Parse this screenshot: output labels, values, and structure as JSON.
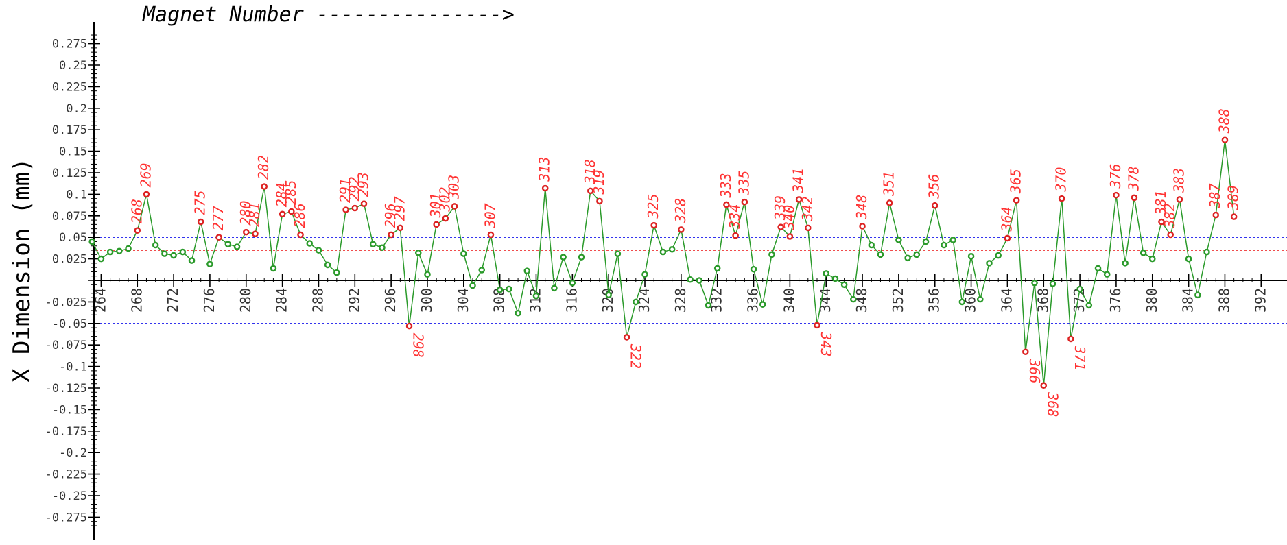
{
  "chart_data": {
    "type": "line",
    "title": "Magnet Number --------------->",
    "xlabel": "",
    "ylabel": "X Dimension (mm)",
    "xlim": [
      262.7,
      393.9
    ],
    "ylim": [
      -0.29,
      0.3
    ],
    "x_ticks": [
      264,
      268,
      272,
      276,
      280,
      284,
      288,
      292,
      296,
      300,
      304,
      308,
      312,
      316,
      320,
      324,
      328,
      332,
      336,
      340,
      344,
      348,
      352,
      356,
      360,
      364,
      368,
      372,
      376,
      380,
      384,
      388,
      392
    ],
    "y_ticks": [
      "0.275",
      "0.25",
      "0.225",
      "0.2",
      "0.175",
      "0.15",
      "0.125",
      "0.1",
      "0.075",
      "0.05",
      "0.025",
      "-0.025",
      "-0.05",
      "-0.075",
      "-0.1",
      "-0.125",
      "-0.15",
      "-0.175",
      "-0.2",
      "-0.225",
      "-0.25",
      "-0.275"
    ],
    "y_tick_values": [
      0.275,
      0.25,
      0.225,
      0.2,
      0.175,
      0.15,
      0.125,
      0.1,
      0.075,
      0.05,
      0.025,
      -0.025,
      -0.05,
      -0.075,
      -0.1,
      -0.125,
      -0.15,
      -0.175,
      -0.2,
      -0.225,
      -0.25,
      -0.275
    ],
    "reference_lines": [
      {
        "y": 0.05,
        "color": "#3333ee",
        "style": "dotted"
      },
      {
        "y": -0.05,
        "color": "#3333ee",
        "style": "dotted"
      },
      {
        "y": 0.035,
        "color": "#ee3333",
        "style": "dotted"
      }
    ],
    "grid": false,
    "colors": {
      "line": "#2a9a2a",
      "in_tolerance": "#2a9a2a",
      "out_of_tolerance": "#dd2222",
      "label": "#ff3333",
      "axis": "#000000"
    },
    "series": [
      {
        "x": [
          263,
          264,
          265,
          266,
          267,
          268,
          269,
          270,
          271,
          272,
          273,
          274,
          275,
          276,
          277,
          278,
          279,
          280,
          281,
          282,
          283,
          284,
          285,
          286,
          287,
          288,
          289,
          290,
          291,
          292,
          293,
          294,
          295,
          296,
          297,
          298,
          299,
          300,
          301,
          302,
          303,
          304,
          305,
          306,
          307,
          308,
          309,
          310,
          311,
          312,
          313,
          314,
          315,
          316,
          317,
          318,
          319,
          320,
          321,
          322,
          323,
          324,
          325,
          326,
          327,
          328,
          329,
          330,
          331,
          332,
          333,
          334,
          335,
          336,
          337,
          338,
          339,
          340,
          341,
          342,
          343,
          344,
          345,
          346,
          347,
          348,
          349,
          350,
          351,
          352,
          353,
          354,
          355,
          356,
          357,
          358,
          359,
          360,
          361,
          362,
          363,
          364,
          365,
          366,
          367,
          368,
          369,
          370,
          371,
          372,
          373,
          374,
          375,
          376,
          377,
          378,
          379,
          380,
          381,
          382,
          383,
          384,
          385,
          386,
          387,
          388,
          389
        ],
        "values": [
          0.045,
          0.025,
          0.033,
          0.034,
          0.037,
          0.058,
          0.1,
          0.041,
          0.031,
          0.029,
          0.033,
          0.023,
          0.068,
          0.019,
          0.05,
          0.042,
          0.039,
          0.056,
          0.054,
          0.109,
          0.014,
          0.077,
          0.08,
          0.053,
          0.043,
          0.035,
          0.018,
          0.009,
          0.082,
          0.084,
          0.089,
          0.042,
          0.038,
          0.053,
          0.061,
          -0.053,
          0.032,
          0.007,
          0.065,
          0.072,
          0.086,
          0.031,
          -0.006,
          0.012,
          0.053,
          -0.011,
          -0.01,
          -0.038,
          0.011,
          -0.018,
          0.107,
          -0.009,
          0.027,
          -0.003,
          0.027,
          0.104,
          0.092,
          -0.017,
          0.031,
          -0.066,
          -0.025,
          0.007,
          0.064,
          0.033,
          0.036,
          0.059,
          0.001,
          0.0,
          -0.029,
          0.014,
          0.088,
          0.052,
          0.091,
          0.013,
          -0.028,
          0.03,
          0.062,
          0.051,
          0.094,
          0.061,
          -0.052,
          0.008,
          0.002,
          -0.005,
          -0.022,
          0.063,
          0.041,
          0.03,
          0.09,
          0.047,
          0.026,
          0.03,
          0.045,
          0.087,
          0.041,
          0.047,
          -0.025,
          0.028,
          -0.022,
          0.02,
          0.029,
          0.049,
          0.093,
          -0.083,
          -0.003,
          -0.122,
          -0.004,
          0.095,
          -0.068,
          -0.01,
          -0.029,
          0.014,
          0.007,
          0.099,
          0.02,
          0.096,
          0.032,
          0.025,
          0.068,
          0.053,
          0.094,
          0.025,
          -0.017,
          0.033,
          0.076,
          0.163,
          0.074
        ]
      }
    ],
    "labeled_points": [
      268,
      269,
      275,
      277,
      280,
      281,
      282,
      284,
      285,
      286,
      291,
      292,
      293,
      296,
      297,
      298,
      301,
      302,
      303,
      307,
      313,
      318,
      319,
      322,
      325,
      328,
      333,
      334,
      335,
      339,
      340,
      341,
      342,
      343,
      348,
      351,
      356,
      364,
      365,
      366,
      368,
      370,
      371,
      376,
      378,
      381,
      382,
      383,
      387,
      388,
      389
    ]
  }
}
